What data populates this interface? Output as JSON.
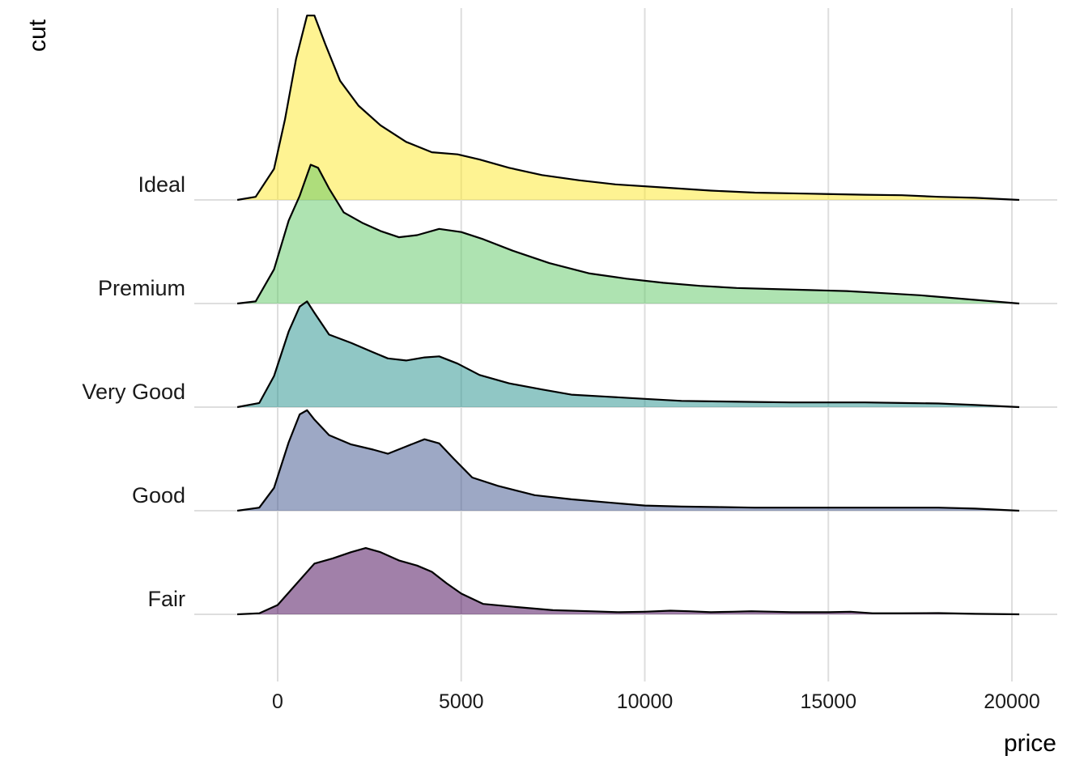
{
  "chart_data": {
    "type": "ridgeline",
    "xlabel": "price",
    "ylabel": "cut",
    "xlim": [
      -1100,
      20200
    ],
    "x_ticks": [
      0,
      5000,
      10000,
      15000,
      20000
    ],
    "x_tick_labels": [
      "0",
      "5000",
      "10000",
      "15000",
      "20000"
    ],
    "grid": true,
    "fill_opacity": 0.5,
    "categories": [
      "Fair",
      "Good",
      "Very Good",
      "Premium",
      "Ideal"
    ],
    "series": [
      {
        "name": "Fair",
        "color": "#440154",
        "points": [
          [
            -1100,
            0
          ],
          [
            -500,
            0.01
          ],
          [
            0,
            0.09
          ],
          [
            500,
            0.29
          ],
          [
            1000,
            0.49
          ],
          [
            1500,
            0.54
          ],
          [
            2000,
            0.6
          ],
          [
            2400,
            0.64
          ],
          [
            2800,
            0.6
          ],
          [
            3300,
            0.52
          ],
          [
            3800,
            0.47
          ],
          [
            4200,
            0.41
          ],
          [
            4600,
            0.3
          ],
          [
            5000,
            0.2
          ],
          [
            5600,
            0.1
          ],
          [
            6500,
            0.07
          ],
          [
            7500,
            0.04
          ],
          [
            8500,
            0.03
          ],
          [
            9300,
            0.02
          ],
          [
            10000,
            0.025
          ],
          [
            10700,
            0.035
          ],
          [
            11200,
            0.03
          ],
          [
            11800,
            0.02
          ],
          [
            12400,
            0.025
          ],
          [
            12900,
            0.03
          ],
          [
            13500,
            0.025
          ],
          [
            14000,
            0.02
          ],
          [
            15000,
            0.02
          ],
          [
            15600,
            0.025
          ],
          [
            16200,
            0.01
          ],
          [
            17000,
            0.01
          ],
          [
            18000,
            0.012
          ],
          [
            19000,
            0.005
          ],
          [
            20200,
            0
          ]
        ]
      },
      {
        "name": "Good",
        "color": "#3b528b",
        "points": [
          [
            -1100,
            0
          ],
          [
            -500,
            0.03
          ],
          [
            -100,
            0.22
          ],
          [
            300,
            0.66
          ],
          [
            600,
            0.93
          ],
          [
            800,
            0.97
          ],
          [
            1000,
            0.88
          ],
          [
            1400,
            0.73
          ],
          [
            2000,
            0.64
          ],
          [
            2600,
            0.59
          ],
          [
            3000,
            0.55
          ],
          [
            3500,
            0.62
          ],
          [
            4000,
            0.69
          ],
          [
            4400,
            0.65
          ],
          [
            4800,
            0.5
          ],
          [
            5300,
            0.32
          ],
          [
            6000,
            0.24
          ],
          [
            7000,
            0.15
          ],
          [
            8000,
            0.11
          ],
          [
            9000,
            0.08
          ],
          [
            10000,
            0.05
          ],
          [
            11000,
            0.04
          ],
          [
            12000,
            0.035
          ],
          [
            13000,
            0.03
          ],
          [
            14000,
            0.03
          ],
          [
            15000,
            0.03
          ],
          [
            16000,
            0.03
          ],
          [
            17000,
            0.03
          ],
          [
            18000,
            0.03
          ],
          [
            19000,
            0.02
          ],
          [
            20200,
            0
          ]
        ]
      },
      {
        "name": "Very Good",
        "color": "#21908c",
        "points": [
          [
            -1100,
            0
          ],
          [
            -500,
            0.04
          ],
          [
            -100,
            0.3
          ],
          [
            300,
            0.73
          ],
          [
            600,
            0.97
          ],
          [
            800,
            1.02
          ],
          [
            1000,
            0.91
          ],
          [
            1400,
            0.7
          ],
          [
            2000,
            0.62
          ],
          [
            2600,
            0.53
          ],
          [
            3000,
            0.47
          ],
          [
            3500,
            0.45
          ],
          [
            4000,
            0.48
          ],
          [
            4400,
            0.49
          ],
          [
            4900,
            0.42
          ],
          [
            5500,
            0.31
          ],
          [
            6300,
            0.23
          ],
          [
            7200,
            0.17
          ],
          [
            8000,
            0.12
          ],
          [
            9000,
            0.1
          ],
          [
            10000,
            0.08
          ],
          [
            11000,
            0.06
          ],
          [
            12000,
            0.055
          ],
          [
            13000,
            0.05
          ],
          [
            14000,
            0.045
          ],
          [
            15000,
            0.045
          ],
          [
            16000,
            0.045
          ],
          [
            17000,
            0.04
          ],
          [
            18000,
            0.035
          ],
          [
            19000,
            0.02
          ],
          [
            20200,
            0
          ]
        ]
      },
      {
        "name": "Premium",
        "color": "#5dc863",
        "points": [
          [
            -1100,
            0
          ],
          [
            -600,
            0.02
          ],
          [
            -100,
            0.33
          ],
          [
            300,
            0.8
          ],
          [
            600,
            1.04
          ],
          [
            900,
            1.34
          ],
          [
            1100,
            1.31
          ],
          [
            1400,
            1.11
          ],
          [
            1800,
            0.88
          ],
          [
            2300,
            0.78
          ],
          [
            2800,
            0.7
          ],
          [
            3300,
            0.64
          ],
          [
            3800,
            0.66
          ],
          [
            4400,
            0.72
          ],
          [
            5000,
            0.69
          ],
          [
            5600,
            0.62
          ],
          [
            6400,
            0.51
          ],
          [
            7400,
            0.39
          ],
          [
            8500,
            0.29
          ],
          [
            9500,
            0.24
          ],
          [
            10500,
            0.2
          ],
          [
            11500,
            0.17
          ],
          [
            12500,
            0.15
          ],
          [
            13500,
            0.14
          ],
          [
            14500,
            0.13
          ],
          [
            15500,
            0.12
          ],
          [
            16500,
            0.1
          ],
          [
            17500,
            0.08
          ],
          [
            18500,
            0.05
          ],
          [
            19500,
            0.02
          ],
          [
            20200,
            0
          ]
        ]
      },
      {
        "name": "Ideal",
        "color": "#fde725",
        "points": [
          [
            -1100,
            0
          ],
          [
            -600,
            0.03
          ],
          [
            -100,
            0.3
          ],
          [
            200,
            0.78
          ],
          [
            500,
            1.36
          ],
          [
            800,
            1.78
          ],
          [
            1000,
            1.78
          ],
          [
            1300,
            1.5
          ],
          [
            1700,
            1.15
          ],
          [
            2200,
            0.91
          ],
          [
            2800,
            0.72
          ],
          [
            3500,
            0.56
          ],
          [
            4200,
            0.46
          ],
          [
            4900,
            0.44
          ],
          [
            5500,
            0.39
          ],
          [
            6300,
            0.31
          ],
          [
            7200,
            0.24
          ],
          [
            8200,
            0.19
          ],
          [
            9200,
            0.15
          ],
          [
            10500,
            0.12
          ],
          [
            11800,
            0.09
          ],
          [
            13000,
            0.07
          ],
          [
            14500,
            0.06
          ],
          [
            16000,
            0.05
          ],
          [
            17000,
            0.045
          ],
          [
            18000,
            0.03
          ],
          [
            19000,
            0.02
          ],
          [
            20200,
            0
          ]
        ]
      }
    ]
  }
}
